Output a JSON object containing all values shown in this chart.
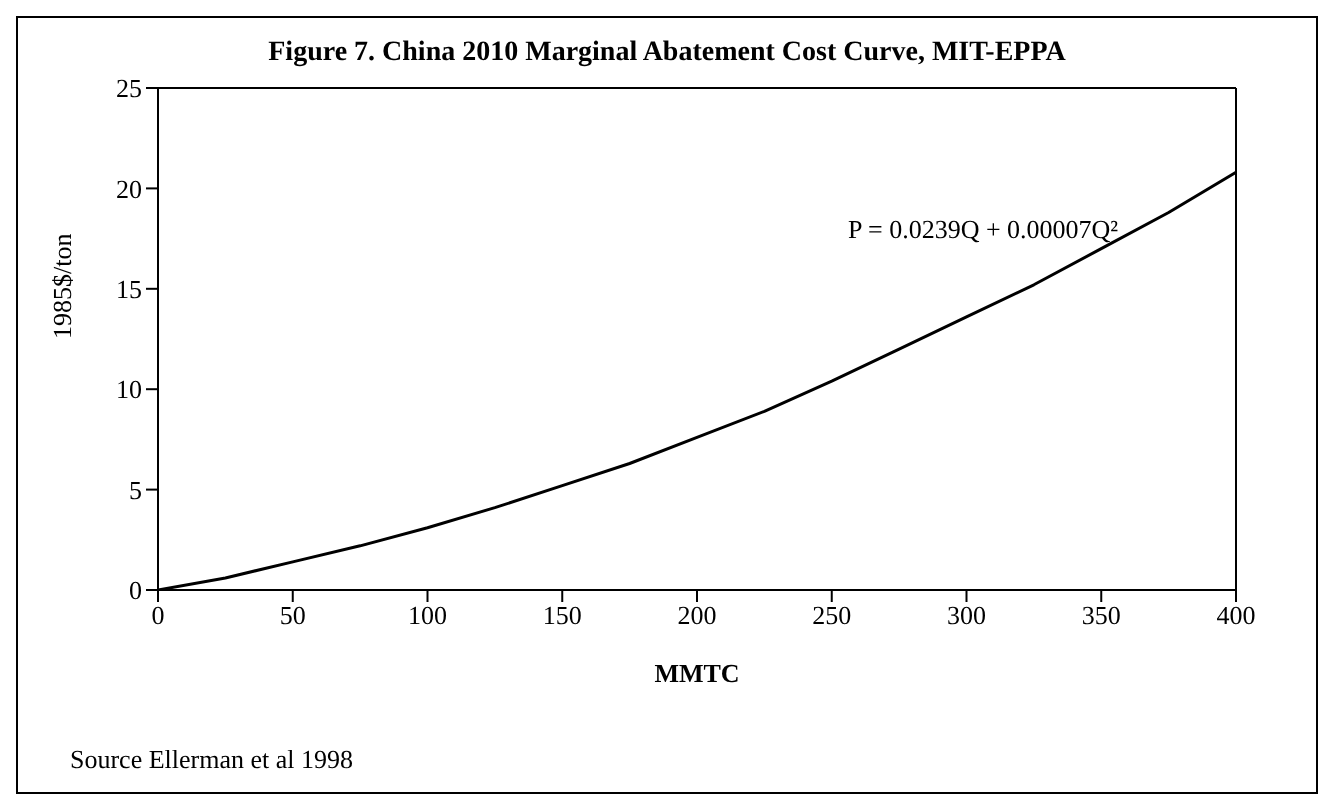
{
  "chart_data": {
    "type": "line",
    "title": "Figure 7. China 2010 Marginal Abatement Cost Curve, MIT-EPPA",
    "xlabel": "MMTC",
    "ylabel": "1985$/ton",
    "x": [
      0,
      25,
      50,
      75,
      100,
      125,
      150,
      175,
      200,
      225,
      250,
      275,
      300,
      325,
      350,
      375,
      400
    ],
    "series": [
      {
        "color": "#000000",
        "values": [
          0,
          0.6,
          1.4,
          2.2,
          3.1,
          4.1,
          5.2,
          6.3,
          7.6,
          8.9,
          10.4,
          12.0,
          13.6,
          15.2,
          17.0,
          18.8,
          20.8
        ]
      }
    ],
    "xlim": [
      0,
      400
    ],
    "xticks": [
      0,
      50,
      100,
      150,
      200,
      250,
      300,
      350,
      400
    ],
    "ylim": [
      0,
      25
    ],
    "yticks": [
      0,
      5,
      10,
      15,
      20,
      25
    ],
    "grid": false,
    "legend": false,
    "marker": "none",
    "line_style": "solid",
    "annotations": [
      "P = 0.0239Q + 0.00007Q²",
      "Source  Ellerman et al 1998"
    ]
  }
}
